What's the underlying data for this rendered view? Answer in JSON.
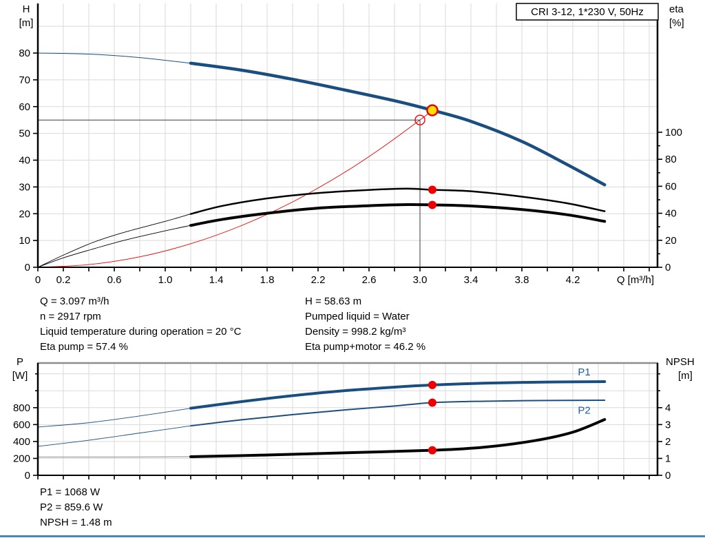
{
  "title_box": "CRI 3-12, 1*230 V, 50Hz",
  "colors": {
    "curve_blue": "#1a4e80",
    "label_blue": "#1f5da8",
    "red": "#ee0000",
    "yellow": "#ffe100",
    "black": "#000000",
    "grid": "#d9d9d9",
    "crosshair": "#3a3a3a",
    "border_gray": "#8c8c8c",
    "npsh_thin_gray": "#888888",
    "divider_blue": "#4a86b8"
  },
  "info_panel": {
    "left": [
      "Q = 3.097 m³/h",
      "n = 2917 rpm",
      "Liquid temperature during operation = 20 °C",
      "Eta pump = 57.4 %"
    ],
    "right": [
      "H = 58.63 m",
      "Pumped liquid = Water",
      "Density = 998.2 kg/m³",
      "Eta pump+motor = 46.2 %"
    ]
  },
  "results": [
    "P1 = 1068 W",
    "P2 = 859.6 W",
    "NPSH = 1.48 m"
  ],
  "chart_data": {
    "type": "line",
    "top_chart": {
      "title": "CRI 3-12, 1*230 V, 50Hz",
      "x_axis": {
        "label": "Q [m³/h]",
        "min": 0,
        "max": 4.86,
        "tick_step": 0.2,
        "labeled_ticks": [
          {
            "q": 0,
            "t": "0"
          },
          {
            "q": 0.2,
            "t": "0.2"
          },
          {
            "q": 0.6,
            "t": "0.6"
          },
          {
            "q": 1.0,
            "t": "1.0"
          },
          {
            "q": 1.4,
            "t": "1.4"
          },
          {
            "q": 1.8,
            "t": "1.8"
          },
          {
            "q": 2.2,
            "t": "2.2"
          },
          {
            "q": 2.6,
            "t": "2.6"
          },
          {
            "q": 3.0,
            "t": "3.0"
          },
          {
            "q": 3.4,
            "t": "3.4"
          },
          {
            "q": 3.8,
            "t": "3.8"
          },
          {
            "q": 4.2,
            "t": "4.2"
          }
        ]
      },
      "y_left": {
        "title_lines": [
          "H",
          "[m]"
        ],
        "min": 0,
        "max": 97,
        "ticks": [
          0,
          10,
          20,
          30,
          40,
          50,
          60,
          70,
          80
        ],
        "labeled": [
          0,
          10,
          20,
          30,
          40,
          50,
          60,
          70,
          80
        ],
        "grid": [
          10,
          20,
          30,
          40,
          50,
          60,
          70,
          80,
          90
        ]
      },
      "y_right": {
        "title_lines": [
          "eta",
          "[%]"
        ],
        "min": 0,
        "max": 195,
        "ticks": [
          0,
          10,
          20,
          30,
          40,
          50,
          60,
          70,
          80,
          90,
          100
        ],
        "labeled": [
          0,
          20,
          40,
          60,
          80,
          100
        ]
      },
      "series": [
        {
          "name": "system-curve",
          "axis": "L",
          "color_key": "red",
          "width": 0.9,
          "points": [
            [
              0,
              0
            ],
            [
              0.4,
              1.0
            ],
            [
              0.8,
              3.9
            ],
            [
              1.2,
              8.8
            ],
            [
              1.6,
              15.6
            ],
            [
              2.0,
              24.4
            ],
            [
              2.4,
              35.2
            ],
            [
              2.7,
              44.6
            ],
            [
              3.0,
              55.0
            ],
            [
              3.097,
              58.63
            ]
          ]
        },
        {
          "name": "eta-pump-curve",
          "axis": "R",
          "color_key": "black",
          "width": 2.5,
          "thin_width": 0.9,
          "thin_until": 1.2,
          "points": [
            [
              0,
              0
            ],
            [
              0.2,
              9
            ],
            [
              0.45,
              19
            ],
            [
              0.7,
              26.5
            ],
            [
              1.0,
              34
            ],
            [
              1.2,
              39.5
            ],
            [
              1.45,
              45.5
            ],
            [
              1.8,
              51
            ],
            [
              2.2,
              55
            ],
            [
              2.6,
              57.3
            ],
            [
              2.9,
              58.2
            ],
            [
              3.097,
              57.4
            ],
            [
              3.4,
              56.3
            ],
            [
              3.8,
              52.3
            ],
            [
              4.15,
              47.5
            ],
            [
              4.45,
              41.5
            ]
          ]
        },
        {
          "name": "eta-pump-motor-curve",
          "axis": "R",
          "color_key": "black",
          "width": 4,
          "thin_width": 0.9,
          "thin_until": 1.2,
          "points": [
            [
              0,
              0
            ],
            [
              0.2,
              7
            ],
            [
              0.45,
              14
            ],
            [
              0.7,
              20.5
            ],
            [
              1.0,
              27
            ],
            [
              1.2,
              31
            ],
            [
              1.45,
              35.5
            ],
            [
              1.8,
              40
            ],
            [
              2.2,
              43.8
            ],
            [
              2.6,
              45.6
            ],
            [
              2.9,
              46.4
            ],
            [
              3.097,
              46.2
            ],
            [
              3.4,
              45.4
            ],
            [
              3.8,
              42.8
            ],
            [
              4.15,
              39
            ],
            [
              4.45,
              34
            ]
          ]
        },
        {
          "name": "pump-qh-curve",
          "axis": "L",
          "color_key": "curve_blue",
          "width": 4.5,
          "thin_width": 1,
          "thin_until": 1.2,
          "points": [
            [
              0,
              80
            ],
            [
              0.4,
              79.6
            ],
            [
              0.8,
              78.3
            ],
            [
              1.2,
              76.2
            ],
            [
              1.6,
              73.6
            ],
            [
              2.0,
              70.2
            ],
            [
              2.4,
              66.3
            ],
            [
              2.8,
              62.2
            ],
            [
              3.097,
              58.63
            ],
            [
              3.4,
              54.5
            ],
            [
              3.8,
              47
            ],
            [
              4.15,
              38.5
            ],
            [
              4.45,
              30.8
            ]
          ]
        }
      ],
      "crosshair": {
        "q": 3.0,
        "h": 55
      },
      "markers": [
        {
          "name": "requested-duty-point",
          "type": "open",
          "axis": "L",
          "q": 3.0,
          "v": 55,
          "r": 7
        },
        {
          "name": "duty-point",
          "type": "duty",
          "axis": "L",
          "q": 3.097,
          "v": 58.63,
          "r": 7.5
        },
        {
          "name": "eta-pump-point",
          "type": "dot",
          "axis": "R",
          "q": 3.097,
          "v": 57.4,
          "r": 6
        },
        {
          "name": "eta-pump-motor-point",
          "type": "dot",
          "axis": "R",
          "q": 3.097,
          "v": 46.2,
          "r": 6
        }
      ]
    },
    "bottom_chart": {
      "x_axis": {
        "min": 0,
        "max": 4.86,
        "tick_step": 0.2,
        "labeled_ticks": []
      },
      "y_left": {
        "title_lines": [
          "P",
          "[W]"
        ],
        "min": 0,
        "max": 1330,
        "ticks": [
          0,
          200,
          400,
          600,
          800,
          1000,
          1200
        ],
        "labeled": [
          0,
          200,
          400,
          600,
          800
        ],
        "grid": [
          200,
          400,
          600,
          800,
          1000,
          1200
        ]
      },
      "y_right": {
        "title_lines": [
          "NPSH",
          "[m]"
        ],
        "min": 0,
        "max": 6.6,
        "ticks": [
          0,
          1,
          2,
          3,
          4,
          5,
          6
        ],
        "labeled": [
          0,
          1,
          2,
          3,
          4
        ]
      },
      "series": [
        {
          "name": "p1-curve",
          "axis": "L",
          "color_key": "curve_blue",
          "width": 4,
          "thin_width": 0.9,
          "thin_until": 1.2,
          "points": [
            [
              0,
              571
            ],
            [
              0.4,
              622
            ],
            [
              0.8,
              702
            ],
            [
              1.2,
              793
            ],
            [
              1.6,
              872
            ],
            [
              2.0,
              942
            ],
            [
              2.4,
              1000
            ],
            [
              2.8,
              1043
            ],
            [
              3.097,
              1068
            ],
            [
              3.5,
              1090
            ],
            [
              4.0,
              1103
            ],
            [
              4.45,
              1108
            ]
          ]
        },
        {
          "name": "p2-curve",
          "axis": "L",
          "color_key": "curve_blue",
          "width": 2,
          "thin_width": 0.9,
          "thin_until": 1.2,
          "points": [
            [
              0,
              342
            ],
            [
              0.4,
              415
            ],
            [
              0.8,
              500
            ],
            [
              1.2,
              585
            ],
            [
              1.6,
              657
            ],
            [
              2.0,
              718
            ],
            [
              2.4,
              772
            ],
            [
              2.8,
              820
            ],
            [
              3.097,
              859.6
            ],
            [
              3.5,
              876
            ],
            [
              4.0,
              885
            ],
            [
              4.45,
              888
            ]
          ]
        },
        {
          "name": "npsh-curve",
          "axis": "R",
          "color_key": "black",
          "width": 4,
          "thin_width": 1,
          "thin_until": 1.2,
          "thin_color_key": "npsh_thin_gray",
          "points": [
            [
              0,
              1.08
            ],
            [
              0.6,
              1.08
            ],
            [
              1.2,
              1.1
            ],
            [
              1.8,
              1.2
            ],
            [
              2.4,
              1.33
            ],
            [
              3.097,
              1.48
            ],
            [
              3.5,
              1.66
            ],
            [
              3.9,
              2.05
            ],
            [
              4.2,
              2.55
            ],
            [
              4.45,
              3.3
            ]
          ]
        }
      ],
      "markers": [
        {
          "name": "p1-point",
          "type": "dot",
          "axis": "L",
          "q": 3.097,
          "v": 1068,
          "r": 6
        },
        {
          "name": "p2-point",
          "type": "dot",
          "axis": "L",
          "q": 3.097,
          "v": 859.6,
          "r": 6
        },
        {
          "name": "npsh-point",
          "type": "dot",
          "axis": "R",
          "q": 3.097,
          "v": 1.48,
          "r": 6
        }
      ],
      "curve_labels": [
        {
          "text": "P1",
          "q": 4.24,
          "axis": "L",
          "v": 1180
        },
        {
          "text": "P2",
          "q": 4.24,
          "axis": "L",
          "v": 728
        }
      ]
    }
  }
}
